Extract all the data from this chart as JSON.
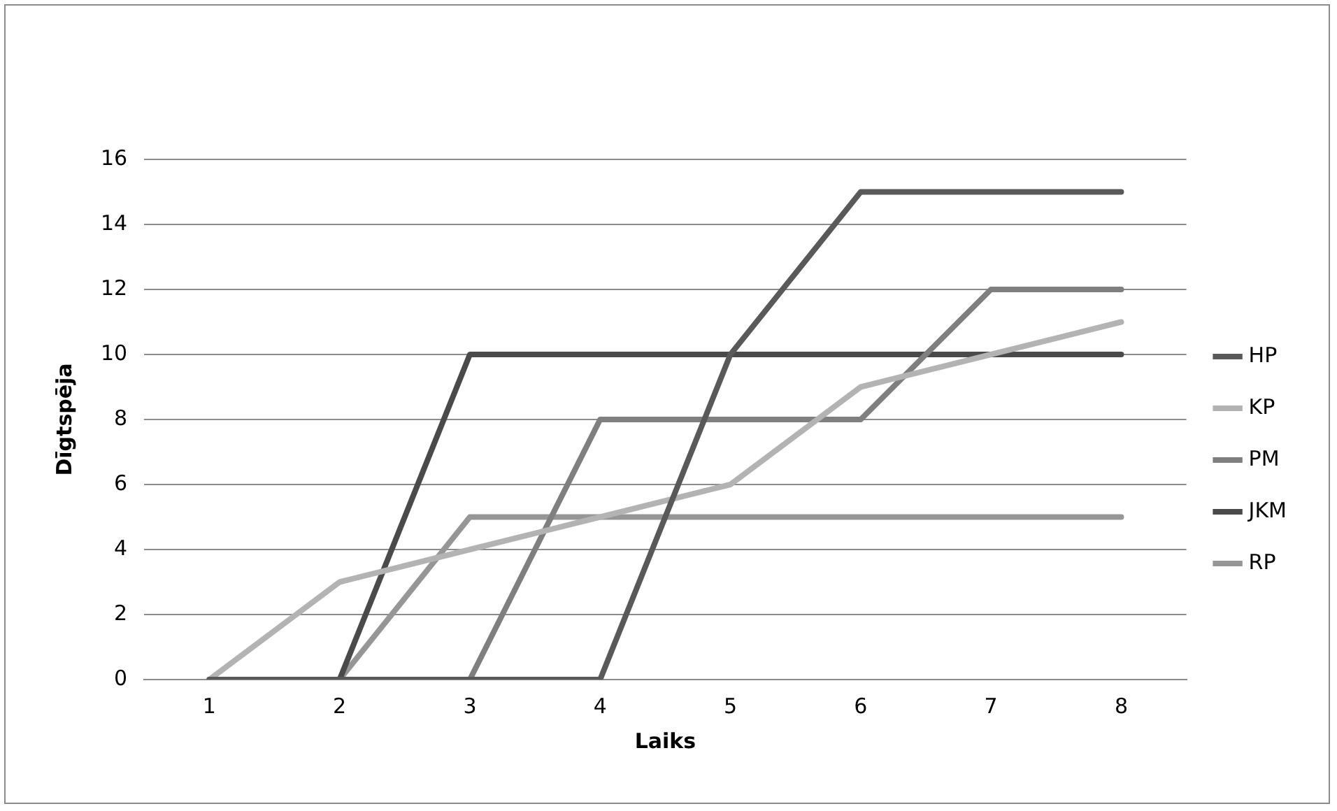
{
  "chart_data": {
    "type": "line",
    "xlabel": "Laiks",
    "ylabel": "Dīgtspēja",
    "categories": [
      "1",
      "2",
      "3",
      "4",
      "5",
      "6",
      "7",
      "8"
    ],
    "series": [
      {
        "name": "HP",
        "color": "#595959",
        "values": [
          0,
          0,
          0,
          0,
          10,
          15,
          15,
          15
        ]
      },
      {
        "name": "KP",
        "color": "#b3b3b3",
        "values": [
          0,
          3,
          4,
          5,
          6,
          9,
          10,
          11
        ]
      },
      {
        "name": "PM",
        "color": "#7f7f7f",
        "values": [
          0,
          0,
          0,
          8,
          8,
          8,
          12,
          12
        ]
      },
      {
        "name": "JKM",
        "color": "#4a4a4a",
        "values": [
          0,
          0,
          10,
          10,
          10,
          10,
          10,
          10
        ]
      },
      {
        "name": "RP",
        "color": "#969696",
        "values": [
          0,
          0,
          5,
          5,
          5,
          5,
          5,
          5
        ]
      }
    ],
    "ylim": [
      0,
      16
    ],
    "yticks": [
      0,
      2,
      4,
      6,
      8,
      10,
      12,
      14,
      16
    ],
    "grid": "y",
    "legend": "right",
    "marker": "none",
    "line_style": "solid"
  }
}
